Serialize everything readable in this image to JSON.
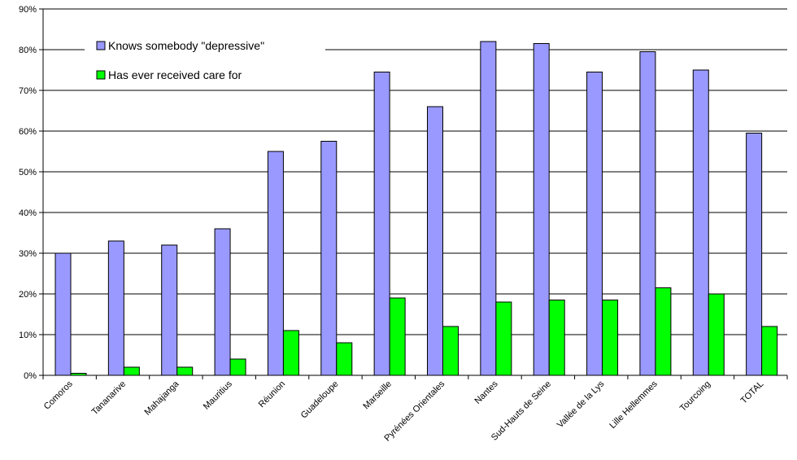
{
  "chart_data": {
    "type": "bar",
    "title": "",
    "xlabel": "",
    "ylabel": "",
    "ylim": [
      0,
      90
    ],
    "yticks": [
      "0%",
      "10%",
      "20%",
      "30%",
      "40%",
      "50%",
      "60%",
      "70%",
      "80%",
      "90%"
    ],
    "grid": "horizontal",
    "legend_position": "top-left",
    "categories": [
      "Comoros",
      "Tananarive",
      "Mahajanga",
      "Mauritius",
      "Réunion",
      "Guadeloupe",
      "Marseille",
      "Pyrénées Orientales",
      "Nantes",
      "Sud-Hauts de Seine",
      "Vallée de la Lys",
      "Lille Hellemmes",
      "Tourcoing",
      "TOTAL"
    ],
    "series": [
      {
        "name": "Knows somebody \"depressive\"",
        "color": "#9999ff",
        "values": [
          30,
          33,
          32,
          36,
          55,
          57.5,
          74.5,
          66,
          82,
          81.5,
          74.5,
          79.5,
          75,
          59.5
        ]
      },
      {
        "name": "Has ever received care for",
        "color": "#00ff00",
        "values": [
          0.5,
          2,
          2,
          4,
          11,
          8,
          19,
          12,
          18,
          18.5,
          18.5,
          21.5,
          20,
          12
        ]
      }
    ]
  }
}
